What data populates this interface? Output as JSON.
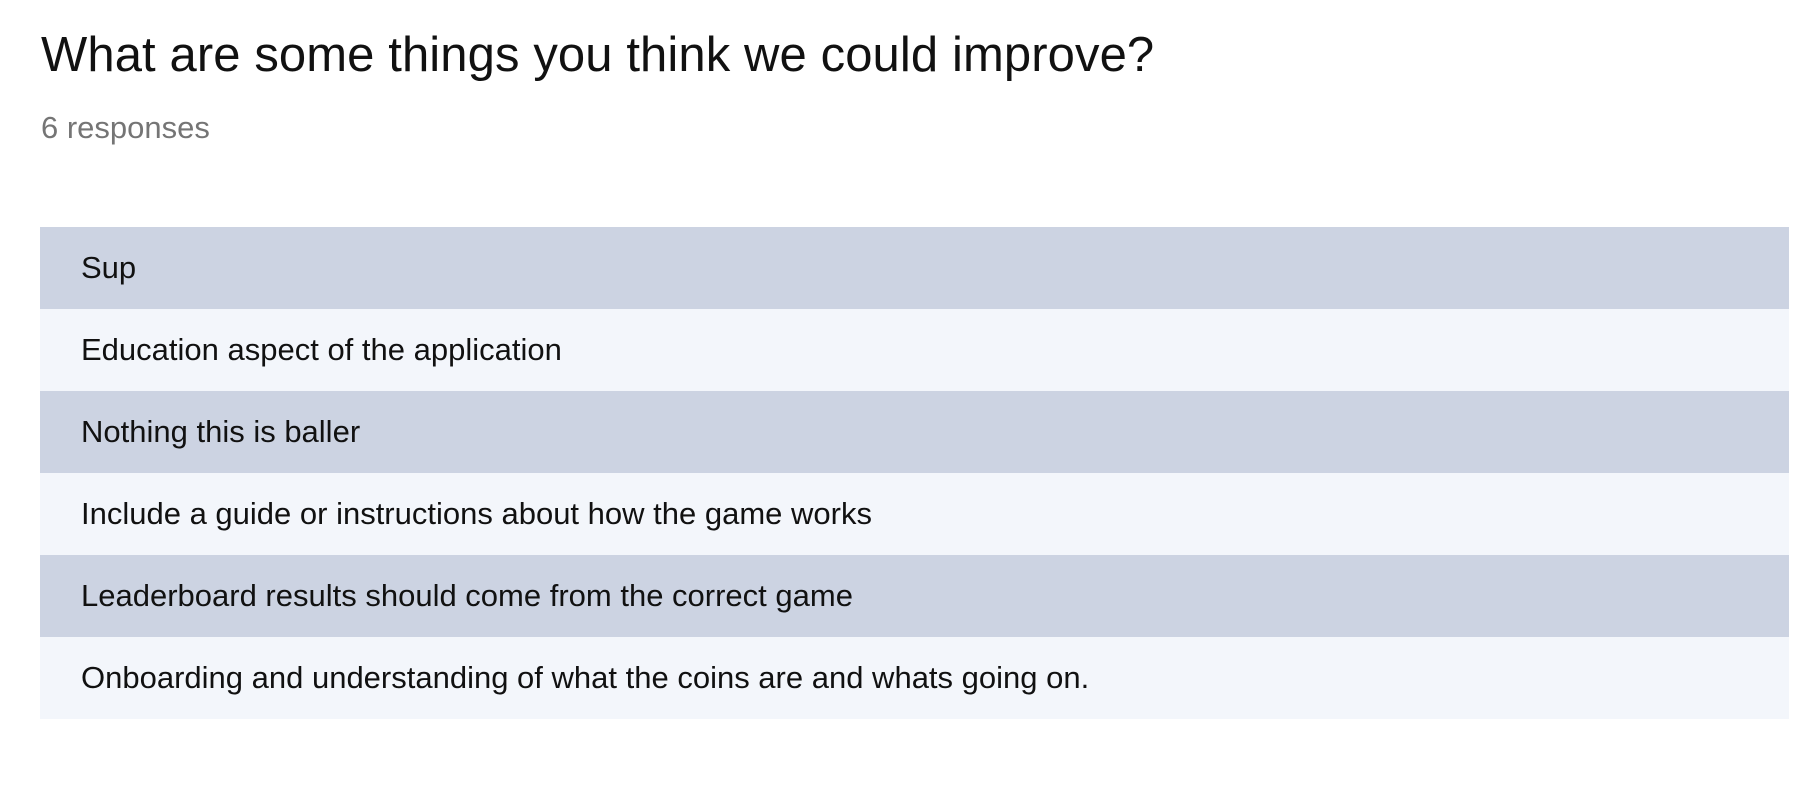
{
  "question": {
    "title": "What are some things you think we could improve?",
    "response_count": "6 responses"
  },
  "responses": [
    "Sup",
    "Education aspect of the application",
    "Nothing this is baller",
    "Include a guide or instructions about how the game works",
    "Leaderboard results should come from the correct game",
    "Onboarding and understanding of what the coins are and whats going on."
  ],
  "colors": {
    "row_dark": "#ccd3e2",
    "row_light": "#f3f6fb",
    "muted_text": "#757575"
  }
}
